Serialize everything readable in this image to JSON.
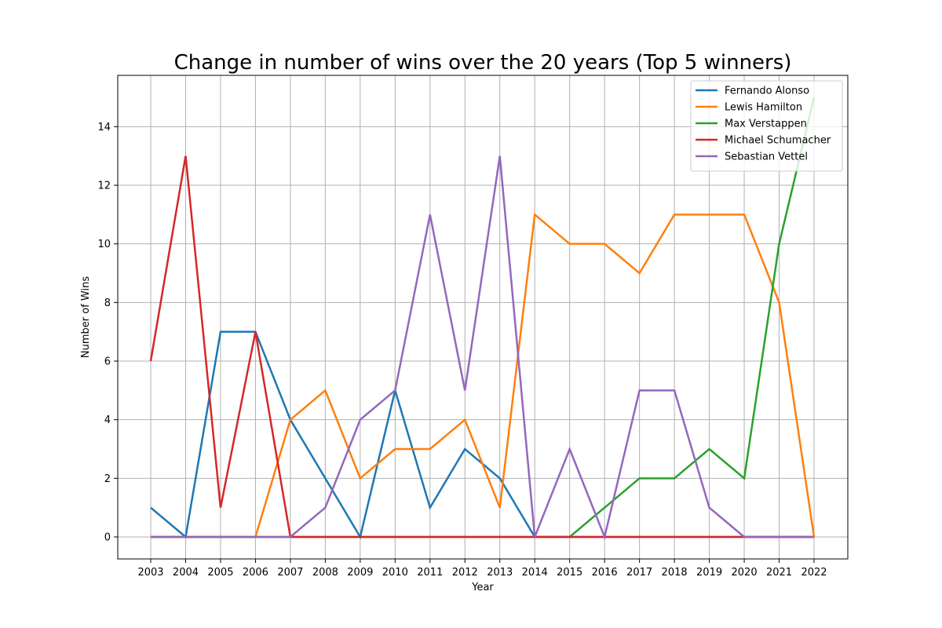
{
  "chart_data": {
    "type": "line",
    "title": "Change in number of wins over the 20 years (Top 5 winners)",
    "xlabel": "Year",
    "ylabel": "Number of Wins",
    "x": [
      "2003",
      "2004",
      "2005",
      "2006",
      "2007",
      "2008",
      "2009",
      "2010",
      "2011",
      "2012",
      "2013",
      "2014",
      "2015",
      "2016",
      "2017",
      "2018",
      "2019",
      "2020",
      "2021",
      "2022"
    ],
    "ylim": [
      -0.75,
      15.75
    ],
    "yticks": [
      0,
      2,
      4,
      6,
      8,
      10,
      12,
      14
    ],
    "grid": true,
    "legend_position": "top-right",
    "series": [
      {
        "name": "Fernando Alonso",
        "color": "#1f77b4",
        "values": [
          1,
          0,
          7,
          7,
          4,
          2,
          0,
          5,
          1,
          3,
          2,
          0,
          0,
          0,
          0,
          0,
          0,
          0,
          0,
          0
        ]
      },
      {
        "name": "Lewis Hamilton",
        "color": "#ff7f0e",
        "values": [
          0,
          0,
          0,
          0,
          4,
          5,
          2,
          3,
          3,
          4,
          1,
          11,
          10,
          10,
          9,
          11,
          11,
          11,
          8,
          0
        ]
      },
      {
        "name": "Max Verstappen",
        "color": "#2ca02c",
        "values": [
          0,
          0,
          0,
          0,
          0,
          0,
          0,
          0,
          0,
          0,
          0,
          0,
          0,
          1,
          2,
          2,
          3,
          2,
          10,
          15
        ]
      },
      {
        "name": "Michael Schumacher",
        "color": "#d62728",
        "values": [
          6,
          13,
          1,
          7,
          0,
          0,
          0,
          0,
          0,
          0,
          0,
          0,
          0,
          0,
          0,
          0,
          0,
          0,
          0,
          0
        ]
      },
      {
        "name": "Sebastian Vettel",
        "color": "#9467bd",
        "values": [
          0,
          0,
          0,
          0,
          0,
          1,
          4,
          5,
          11,
          5,
          13,
          0,
          3,
          0,
          5,
          5,
          1,
          0,
          0,
          0
        ]
      }
    ]
  }
}
